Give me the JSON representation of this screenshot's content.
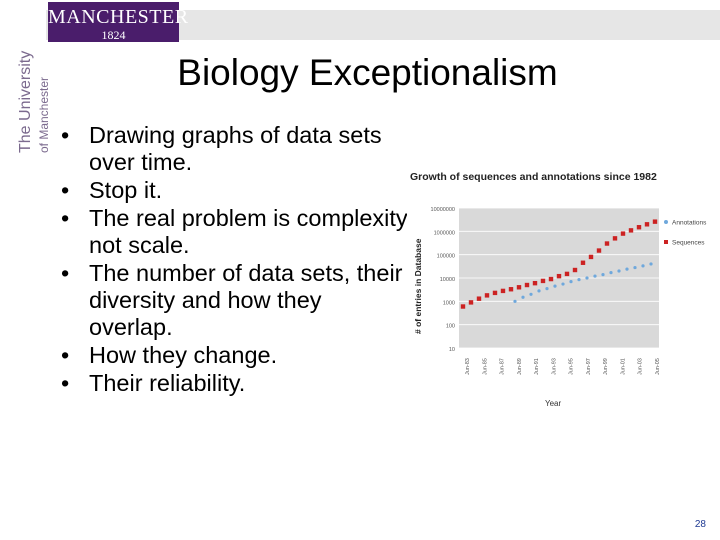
{
  "header": {
    "logo_name": "MANCHESTER",
    "logo_year": "1824",
    "side_text_line1": "The University",
    "side_text_line2": "of Manchester"
  },
  "slide": {
    "title": "Biology Exceptionalism",
    "bullets": [
      "Drawing graphs of data sets over time.",
      "Stop it.",
      "The real problem is complexity not scale.",
      "The number of data sets, their diversity and how they overlap.",
      "How they change.",
      "Their reliability."
    ],
    "page_number": "28"
  },
  "chart_data": {
    "type": "scatter",
    "title": "Growth of sequences and annotations since 1982",
    "xlabel": "Year",
    "ylabel": "# of entries in Database",
    "yscale": "log",
    "yticks": [
      "10000000",
      "1000000",
      "100000",
      "10000",
      "1000",
      "100",
      "10"
    ],
    "xticks": [
      "Jun-83",
      "Jun-85",
      "Jun-87",
      "Jun-89",
      "Jun-91",
      "Jun-93",
      "Jun-95",
      "Jun-97",
      "Jun-99",
      "Jun-01",
      "Jun-03",
      "Jun-05"
    ],
    "legend_position": "right",
    "series": [
      {
        "name": "Annotations",
        "color": "#6fa8dc",
        "x": [
          1989.0,
          1990.0,
          1991.0,
          1992.0,
          1993.0,
          1994.0,
          1995.0,
          1996.0,
          1997.0,
          1998.0,
          1999.0,
          2000.0,
          2001.0,
          2002.0,
          2003.0,
          2004.0,
          2005.0,
          2006.0
        ],
        "y": [
          1000,
          1500,
          2000,
          2800,
          3500,
          4500,
          5500,
          7000,
          8500,
          10000,
          12000,
          14000,
          17000,
          20000,
          24000,
          28000,
          33000,
          40000
        ]
      },
      {
        "name": "Sequences",
        "color": "#cc2222",
        "x": [
          1982.5,
          1983.5,
          1984.5,
          1985.5,
          1986.5,
          1987.5,
          1988.5,
          1989.5,
          1990.5,
          1991.5,
          1992.5,
          1993.5,
          1994.5,
          1995.5,
          1996.5,
          1997.5,
          1998.5,
          1999.5,
          2000.5,
          2001.5,
          2002.5,
          2003.5,
          2004.5,
          2005.5,
          2006.5
        ],
        "y": [
          600,
          900,
          1300,
          1800,
          2300,
          2800,
          3300,
          4000,
          5000,
          6000,
          7500,
          9000,
          12000,
          15000,
          22000,
          45000,
          80000,
          150000,
          300000,
          500000,
          800000,
          1100000,
          1500000,
          2000000,
          2600000
        ]
      }
    ],
    "xlim": [
      1982,
      2007
    ],
    "ylim": [
      10,
      10000000
    ]
  }
}
